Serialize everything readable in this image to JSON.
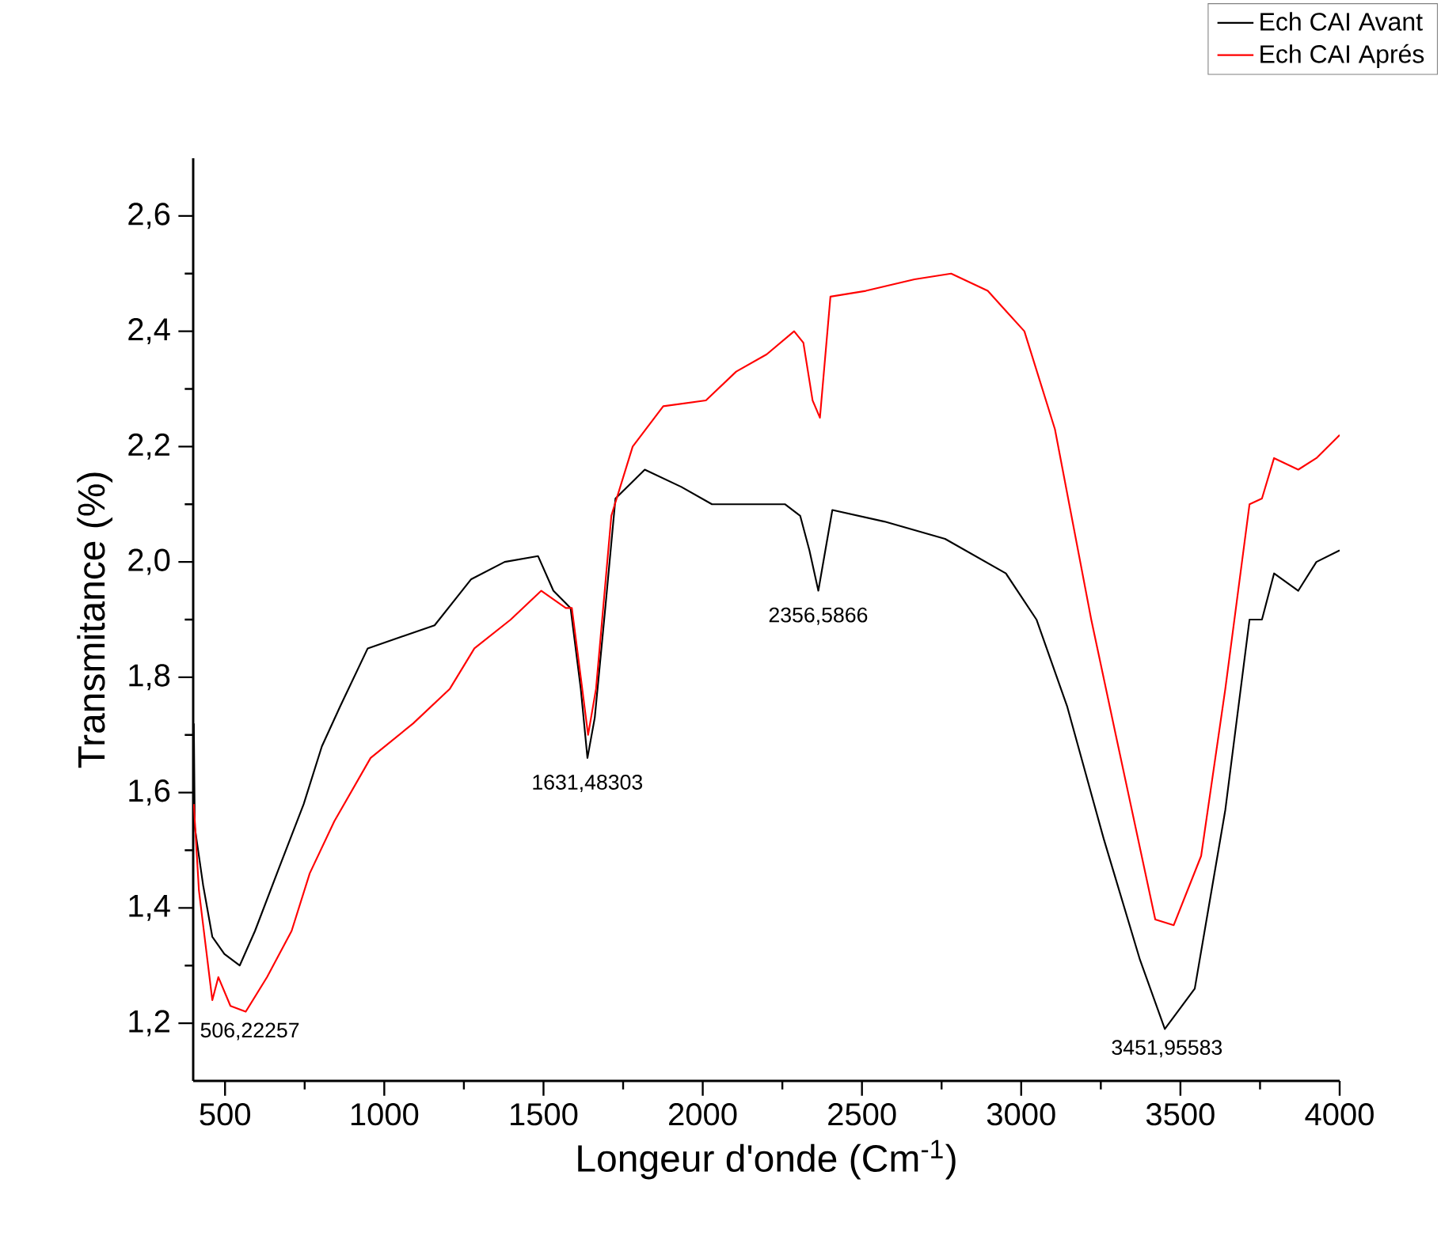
{
  "chart_data": {
    "type": "line",
    "xlabel": "Longeur d'onde (Cm$^{-1}$)",
    "ylabel": "Transmitance (%)",
    "xlim": [
      400,
      4000
    ],
    "ylim": [
      1.1,
      2.7
    ],
    "xticks": [
      500,
      1000,
      1500,
      2000,
      2500,
      3000,
      3500,
      4000
    ],
    "yticks": [
      {
        "value": 1.2,
        "label": "1,2"
      },
      {
        "value": 1.4,
        "label": "1,4"
      },
      {
        "value": 1.6,
        "label": "1,6"
      },
      {
        "value": 1.8,
        "label": "1,8"
      },
      {
        "value": 2.0,
        "label": "2,0"
      },
      {
        "value": 2.2,
        "label": "2,2"
      },
      {
        "value": 2.4,
        "label": "2,4"
      },
      {
        "value": 2.6,
        "label": "2,6"
      }
    ],
    "grid": false,
    "legend": "top right",
    "marker": "none",
    "series": [
      {
        "name": "Ech CAI Avant",
        "color": "#000000",
        "x": [
          402,
          405,
          431,
          460,
          498,
          546,
          594,
          670,
          747,
          804,
          862,
          948,
          1053,
          1158,
          1273,
          1378,
          1483,
          1531,
          1585,
          1617,
          1638,
          1661,
          1694,
          1726,
          1818,
          1933,
          2029,
          2144,
          2258,
          2306,
          2335,
          2363,
          2407,
          2570,
          2761,
          2952,
          3048,
          3144,
          3259,
          3373,
          3451,
          3545,
          3641,
          3717,
          3756,
          3794,
          3870,
          3927,
          4000
        ],
        "values": [
          1.72,
          1.54,
          1.44,
          1.35,
          1.32,
          1.3,
          1.36,
          1.47,
          1.58,
          1.68,
          1.75,
          1.85,
          1.87,
          1.89,
          1.97,
          2.0,
          2.01,
          1.95,
          1.92,
          1.78,
          1.66,
          1.73,
          1.92,
          2.11,
          2.16,
          2.13,
          2.1,
          2.1,
          2.1,
          2.08,
          2.02,
          1.95,
          2.09,
          2.07,
          2.04,
          1.98,
          1.9,
          1.75,
          1.52,
          1.31,
          1.19,
          1.26,
          1.57,
          1.9,
          1.9,
          1.98,
          1.95,
          2.0,
          2.02
        ]
      },
      {
        "name": "Ech CAI Aprés",
        "color": "#ff0000",
        "x": [
          402,
          418,
          460,
          479,
          517,
          565,
          632,
          709,
          766,
          843,
          957,
          1091,
          1206,
          1283,
          1397,
          1493,
          1570,
          1589,
          1617,
          1640,
          1665,
          1713,
          1780,
          1876,
          2010,
          2105,
          2201,
          2287,
          2316,
          2345,
          2368,
          2401,
          2512,
          2665,
          2780,
          2895,
          3010,
          3106,
          3220,
          3297,
          3421,
          3479,
          3565,
          3641,
          3717,
          3756,
          3794,
          3870,
          3927,
          4000
        ],
        "values": [
          1.58,
          1.43,
          1.24,
          1.28,
          1.23,
          1.22,
          1.28,
          1.36,
          1.46,
          1.55,
          1.66,
          1.72,
          1.78,
          1.85,
          1.9,
          1.95,
          1.92,
          1.92,
          1.8,
          1.7,
          1.78,
          2.08,
          2.2,
          2.27,
          2.28,
          2.33,
          2.36,
          2.4,
          2.38,
          2.28,
          2.25,
          2.46,
          2.47,
          2.49,
          2.5,
          2.47,
          2.4,
          2.23,
          1.9,
          1.7,
          1.38,
          1.37,
          1.49,
          1.78,
          2.1,
          2.11,
          2.18,
          2.16,
          2.18,
          2.22
        ]
      }
    ],
    "annotations": [
      {
        "text": "506,22257",
        "x": 506,
        "y": 1.3
      },
      {
        "text": "1631,48303",
        "x": 1631,
        "y": 1.65
      },
      {
        "text": "2356,5866",
        "x": 2356,
        "y": 1.94
      },
      {
        "text": "3451,95583",
        "x": 3451,
        "y": 1.195
      }
    ]
  }
}
